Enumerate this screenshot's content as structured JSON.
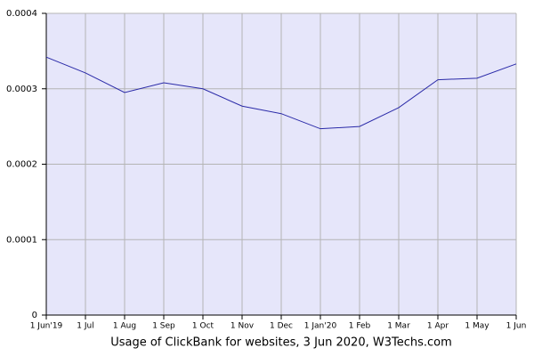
{
  "chart_data": {
    "type": "line",
    "caption": "Usage of ClickBank for websites, 3 Jun 2020, W3Techs.com",
    "categories": [
      "1 Jun'19",
      "1 Jul",
      "1 Aug",
      "1 Sep",
      "1 Oct",
      "1 Nov",
      "1 Dec",
      "1 Jan'20",
      "1 Feb",
      "1 Mar",
      "1 Apr",
      "1 May",
      "1 Jun"
    ],
    "series": [
      {
        "name": "ClickBank",
        "color": "#2a2aa8",
        "values": [
          0.000342,
          0.000321,
          0.000295,
          0.000308,
          0.0003,
          0.000277,
          0.000267,
          0.000247,
          0.00025,
          0.000275,
          0.000312,
          0.000314,
          0.000333
        ]
      }
    ],
    "ylim": [
      0,
      0.0004
    ],
    "yticks": [
      0,
      0.0001,
      0.0002,
      0.0003,
      0.0004
    ],
    "grid": true,
    "plot_background": "#e6e6fa"
  }
}
